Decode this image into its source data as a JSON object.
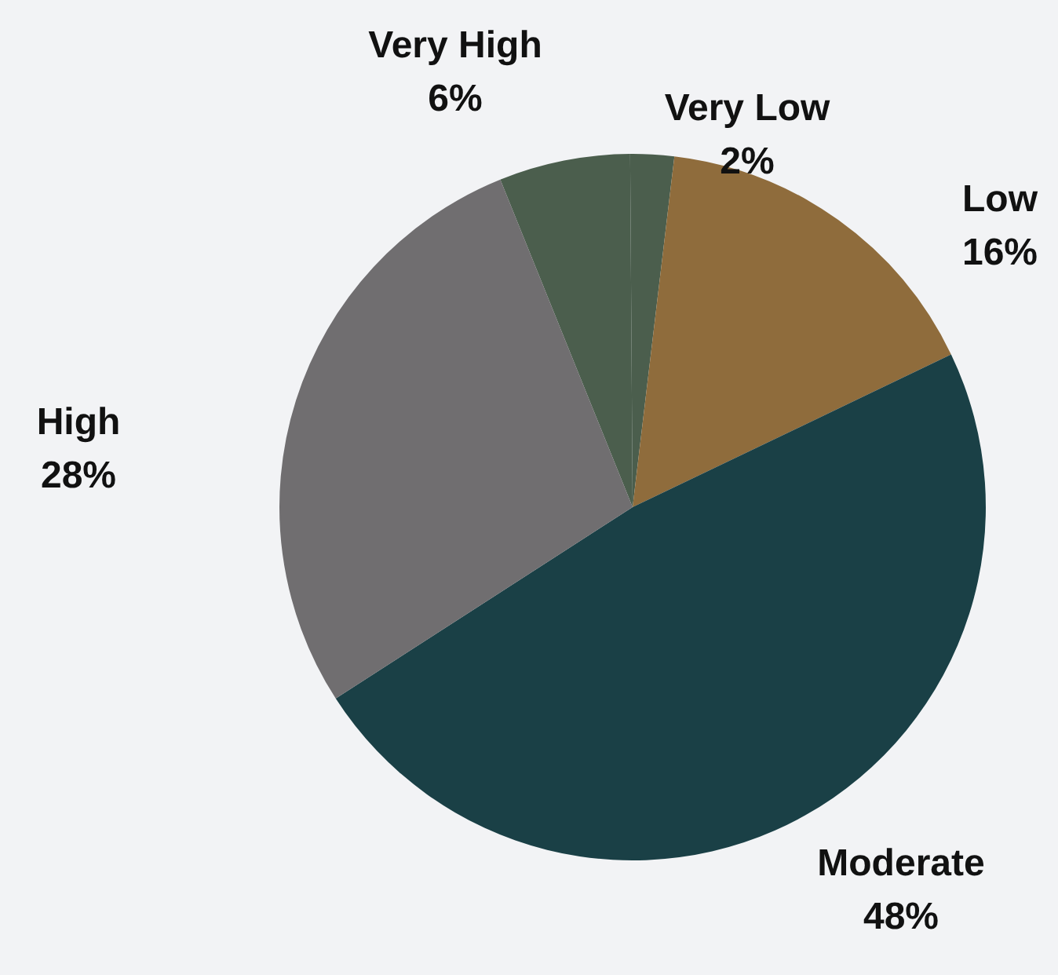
{
  "chart_data": {
    "type": "pie",
    "categories": [
      "Very High",
      "Very Low",
      "Low",
      "Moderate",
      "High"
    ],
    "values": [
      6,
      2,
      16,
      48,
      28
    ],
    "colors": [
      "#4b5e4d",
      "#4b5e4d",
      "#8f6c3c",
      "#1a4046",
      "#706e70"
    ],
    "value_labels": [
      "6%",
      "2%",
      "16%",
      "48%",
      "28%"
    ],
    "legend": false
  }
}
